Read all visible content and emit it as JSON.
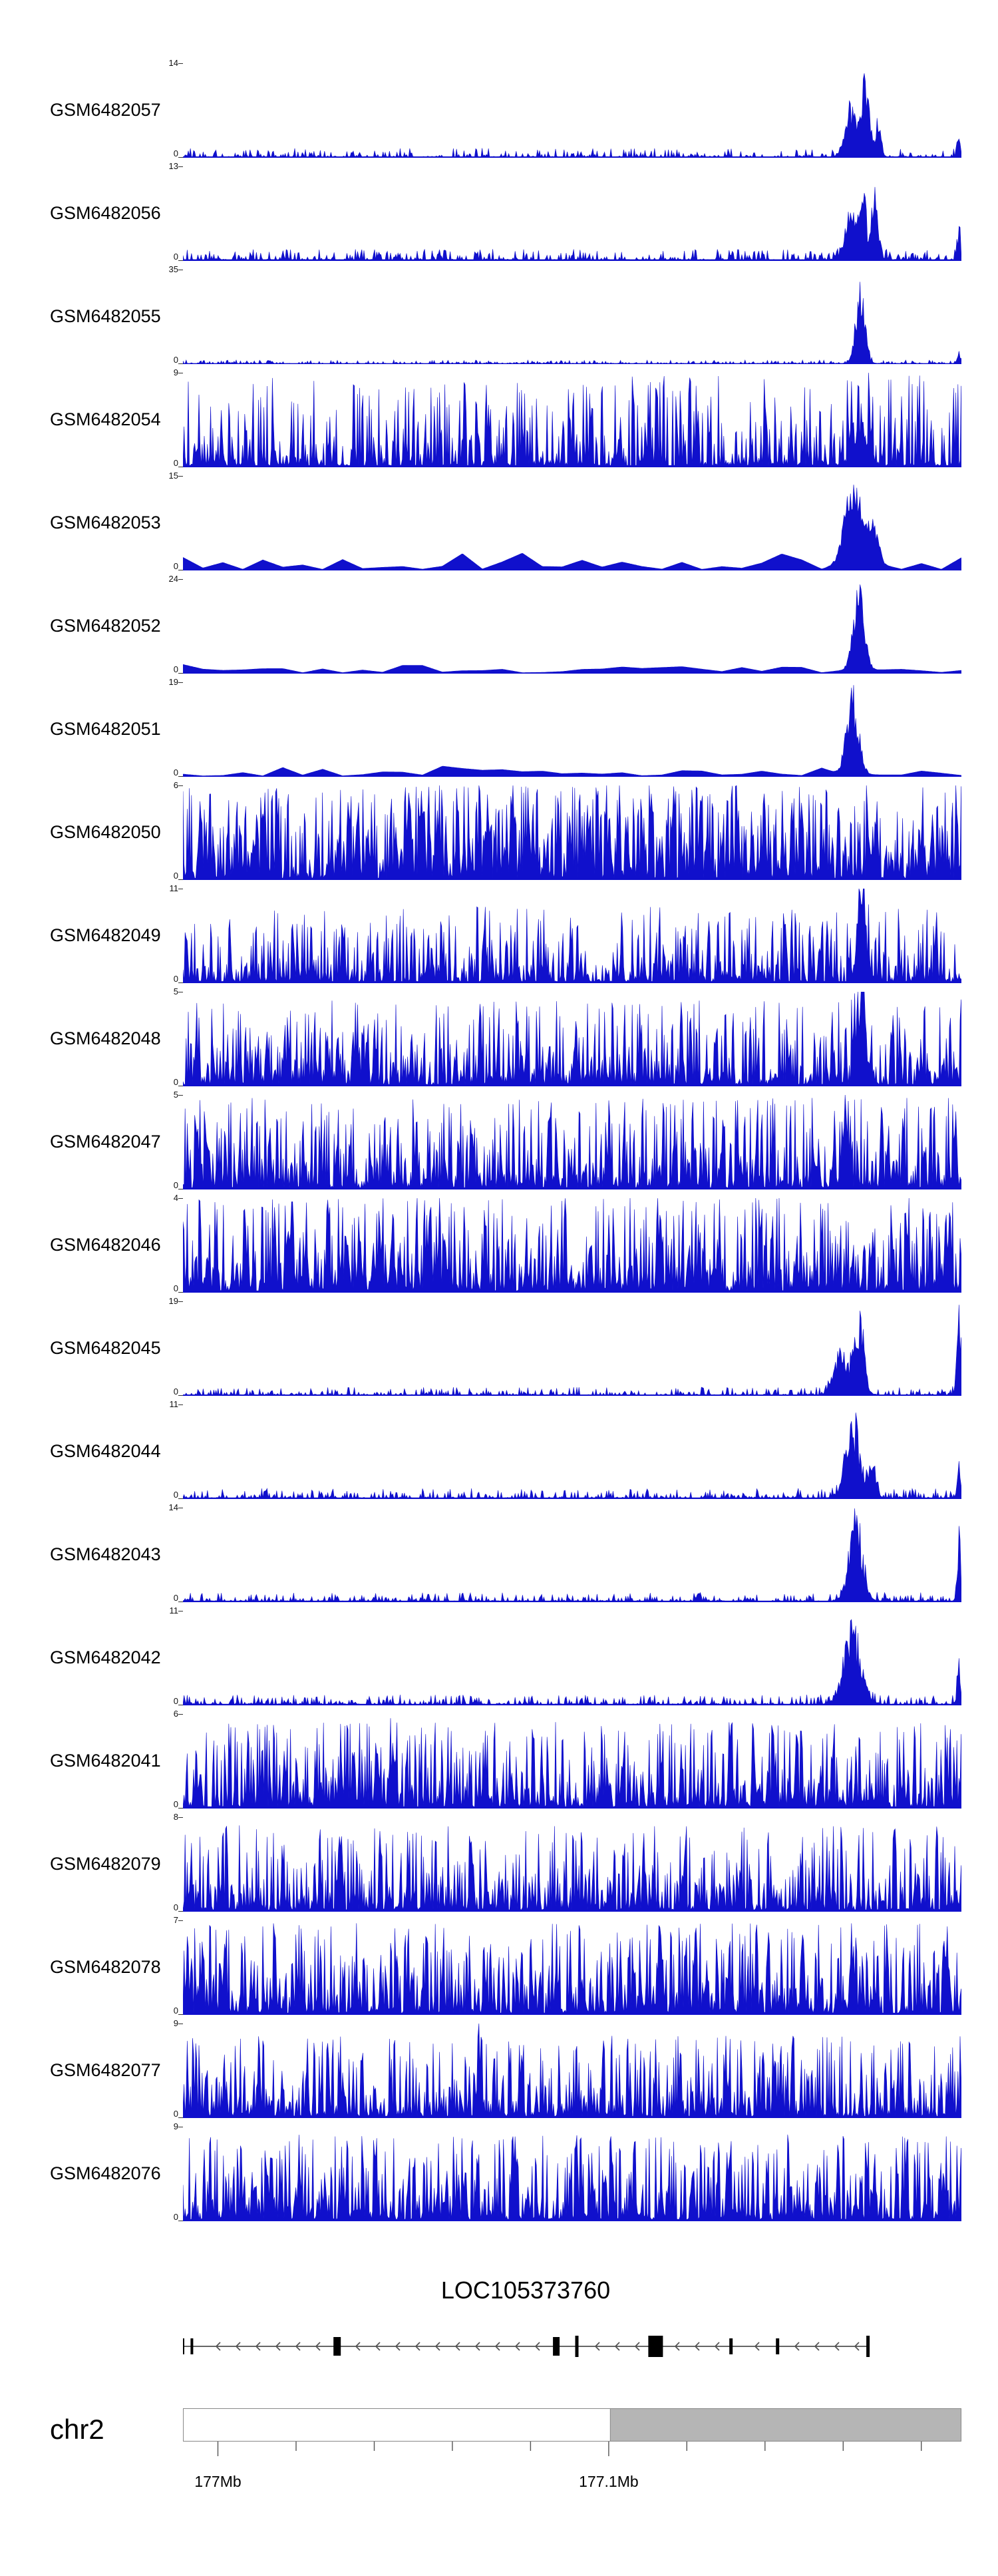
{
  "chart_data": {
    "type": "area",
    "figure_type": "genome_browser_coverage_tracks",
    "signal_color": "#1010cc",
    "axis_color": "#000000",
    "region": {
      "chromosome": "chr2",
      "visible_tick_labels": [
        "177Mb",
        "177.1Mb"
      ]
    },
    "tracks": [
      {
        "label": "GSM6482057",
        "ymax_label": "14",
        "ymin_label": "0",
        "style": "spiky",
        "density": 0.45,
        "base": 0.012,
        "amp": 0.09,
        "shape": 2.2,
        "peaks": [
          {
            "x": 0.858,
            "w": 0.01,
            "h": 0.62
          },
          {
            "x": 0.876,
            "w": 0.007,
            "h": 1.0
          },
          {
            "x": 0.893,
            "w": 0.005,
            "h": 0.45
          },
          {
            "x": 0.997,
            "w": 0.003,
            "h": 0.22
          }
        ]
      },
      {
        "label": "GSM6482056",
        "ymax_label": "13",
        "ymin_label": "0",
        "style": "spiky",
        "density": 0.55,
        "base": 0.015,
        "amp": 0.11,
        "shape": 2.2,
        "peaks": [
          {
            "x": 0.857,
            "w": 0.009,
            "h": 0.55
          },
          {
            "x": 0.873,
            "w": 0.006,
            "h": 1.0
          },
          {
            "x": 0.889,
            "w": 0.006,
            "h": 0.8
          },
          {
            "x": 0.997,
            "w": 0.003,
            "h": 0.35
          }
        ]
      },
      {
        "label": "GSM6482055",
        "ymax_label": "35",
        "ymin_label": "0",
        "style": "spiky",
        "density": 0.5,
        "base": 0.008,
        "amp": 0.035,
        "shape": 2.0,
        "peaks": [
          {
            "x": 0.87,
            "w": 0.008,
            "h": 1.0
          },
          {
            "x": 0.997,
            "w": 0.003,
            "h": 0.12
          }
        ]
      },
      {
        "label": "GSM6482054",
        "ymax_label": "9",
        "ymin_label": "0",
        "style": "spiky",
        "density": 0.92,
        "base": 0.02,
        "amp": 0.95,
        "shape": 2.8,
        "peaks": [
          {
            "x": 0.87,
            "w": 0.012,
            "h": 0.55
          }
        ]
      },
      {
        "label": "GSM6482053",
        "ymax_label": "15",
        "ymin_label": "0",
        "style": "smooth",
        "density": 0.7,
        "base": 0.012,
        "amp": 0.18,
        "shape": 2.0,
        "peaks": [
          {
            "x": 0.862,
            "w": 0.016,
            "h": 1.0
          },
          {
            "x": 0.888,
            "w": 0.008,
            "h": 0.45
          }
        ]
      },
      {
        "label": "GSM6482052",
        "ymax_label": "24",
        "ymin_label": "0",
        "style": "smooth",
        "density": 0.7,
        "base": 0.01,
        "amp": 0.09,
        "shape": 2.0,
        "peaks": [
          {
            "x": 0.868,
            "w": 0.01,
            "h": 1.0
          }
        ]
      },
      {
        "label": "GSM6482051",
        "ymax_label": "19",
        "ymin_label": "0",
        "style": "smooth",
        "density": 0.7,
        "base": 0.01,
        "amp": 0.11,
        "shape": 2.0,
        "peaks": [
          {
            "x": 0.86,
            "w": 0.011,
            "h": 1.0
          }
        ]
      },
      {
        "label": "GSM6482050",
        "ymax_label": "6",
        "ymin_label": "0",
        "style": "spiky",
        "density": 0.97,
        "base": 0.02,
        "amp": 1.0,
        "shape": 1.6,
        "peaks": []
      },
      {
        "label": "GSM6482049",
        "ymax_label": "11",
        "ymin_label": "0",
        "style": "spiky",
        "density": 0.9,
        "base": 0.018,
        "amp": 0.8,
        "shape": 2.4,
        "peaks": [
          {
            "x": 0.872,
            "w": 0.008,
            "h": 1.0
          }
        ]
      },
      {
        "label": "GSM6482048",
        "ymax_label": "5",
        "ymin_label": "0",
        "style": "spiky",
        "density": 0.95,
        "base": 0.02,
        "amp": 0.9,
        "shape": 2.0,
        "peaks": [
          {
            "x": 0.872,
            "w": 0.007,
            "h": 0.9
          }
        ]
      },
      {
        "label": "GSM6482047",
        "ymax_label": "5",
        "ymin_label": "0",
        "style": "spiky",
        "density": 0.95,
        "base": 0.02,
        "amp": 0.95,
        "shape": 2.0,
        "peaks": [
          {
            "x": 0.47,
            "w": 0.002,
            "h": 0.95
          },
          {
            "x": 0.85,
            "w": 0.005,
            "h": 0.7
          }
        ]
      },
      {
        "label": "GSM6482046",
        "ymax_label": "4",
        "ymin_label": "0",
        "style": "spiky",
        "density": 0.97,
        "base": 0.02,
        "amp": 1.0,
        "shape": 1.7,
        "peaks": []
      },
      {
        "label": "GSM6482045",
        "ymax_label": "19",
        "ymin_label": "0",
        "style": "spiky",
        "density": 0.5,
        "base": 0.012,
        "amp": 0.08,
        "shape": 2.2,
        "peaks": [
          {
            "x": 0.845,
            "w": 0.012,
            "h": 0.55
          },
          {
            "x": 0.868,
            "w": 0.009,
            "h": 1.0
          },
          {
            "x": 0.997,
            "w": 0.004,
            "h": 0.95
          }
        ]
      },
      {
        "label": "GSM6482044",
        "ymax_label": "11",
        "ymin_label": "0",
        "style": "spiky",
        "density": 0.55,
        "base": 0.014,
        "amp": 0.1,
        "shape": 2.2,
        "peaks": [
          {
            "x": 0.86,
            "w": 0.013,
            "h": 0.95
          },
          {
            "x": 0.885,
            "w": 0.007,
            "h": 0.45
          },
          {
            "x": 0.997,
            "w": 0.003,
            "h": 0.4
          }
        ]
      },
      {
        "label": "GSM6482043",
        "ymax_label": "14",
        "ymin_label": "0",
        "style": "spiky",
        "density": 0.55,
        "base": 0.014,
        "amp": 0.09,
        "shape": 2.2,
        "peaks": [
          {
            "x": 0.864,
            "w": 0.012,
            "h": 1.0
          },
          {
            "x": 0.997,
            "w": 0.003,
            "h": 0.85
          }
        ]
      },
      {
        "label": "GSM6482042",
        "ymax_label": "11",
        "ymin_label": "0",
        "style": "spiky",
        "density": 0.6,
        "base": 0.014,
        "amp": 0.1,
        "shape": 2.2,
        "peaks": [
          {
            "x": 0.86,
            "w": 0.016,
            "h": 0.9
          },
          {
            "x": 0.997,
            "w": 0.003,
            "h": 0.5
          }
        ]
      },
      {
        "label": "GSM6482041",
        "ymax_label": "6",
        "ymin_label": "0",
        "style": "spiky",
        "density": 0.94,
        "base": 0.02,
        "amp": 0.9,
        "shape": 2.0,
        "peaks": [
          {
            "x": 0.27,
            "w": 0.002,
            "h": 0.9
          }
        ]
      },
      {
        "label": "GSM6482079",
        "ymax_label": "8",
        "ymin_label": "0",
        "style": "spiky",
        "density": 0.94,
        "base": 0.02,
        "amp": 0.9,
        "shape": 2.1,
        "peaks": []
      },
      {
        "label": "GSM6482078",
        "ymax_label": "7",
        "ymin_label": "0",
        "style": "spiky",
        "density": 0.95,
        "base": 0.02,
        "amp": 0.95,
        "shape": 1.9,
        "peaks": []
      },
      {
        "label": "GSM6482077",
        "ymax_label": "9",
        "ymin_label": "0",
        "style": "spiky",
        "density": 0.93,
        "base": 0.02,
        "amp": 0.85,
        "shape": 2.2,
        "peaks": [
          {
            "x": 0.38,
            "w": 0.002,
            "h": 1.0
          }
        ]
      },
      {
        "label": "GSM6482076",
        "ymax_label": "9",
        "ymin_label": "0",
        "style": "spiky",
        "density": 0.94,
        "base": 0.02,
        "amp": 0.9,
        "shape": 2.0,
        "peaks": [
          {
            "x": 0.75,
            "w": 0.002,
            "h": 0.9
          }
        ]
      }
    ],
    "gene": {
      "name": "LOC105373760",
      "strand": "minus",
      "span_frac": [
        0.0,
        0.88
      ],
      "line_color": "#333333",
      "arrow_color": "#555555",
      "exon_color": "#000000",
      "arrow_spacing_px": 30,
      "exons": [
        {
          "x": 0.0,
          "w": 4,
          "h": 24
        },
        {
          "x": 0.013,
          "w": 4,
          "h": 24
        },
        {
          "x": 0.225,
          "w": 11,
          "h": 28
        },
        {
          "x": 0.545,
          "w": 10,
          "h": 28
        },
        {
          "x": 0.575,
          "w": 5,
          "h": 32
        },
        {
          "x": 0.69,
          "w": 22,
          "h": 32
        },
        {
          "x": 0.8,
          "w": 5,
          "h": 24
        },
        {
          "x": 0.868,
          "w": 5,
          "h": 24
        },
        {
          "x": 1.0,
          "w": 5,
          "h": 32
        }
      ]
    },
    "chromosome": {
      "name": "chr2",
      "bar_border_color": "#888888",
      "gray_fill": "#b5b5b5",
      "gray_from_frac": 0.549,
      "ruler_ticks": {
        "start_frac": 0.0449,
        "step_frac": 0.1004,
        "count": 10
      },
      "tick_labels": [
        {
          "index": 0,
          "text": "177Mb"
        },
        {
          "index": 5,
          "text": "177.1Mb"
        }
      ]
    }
  }
}
